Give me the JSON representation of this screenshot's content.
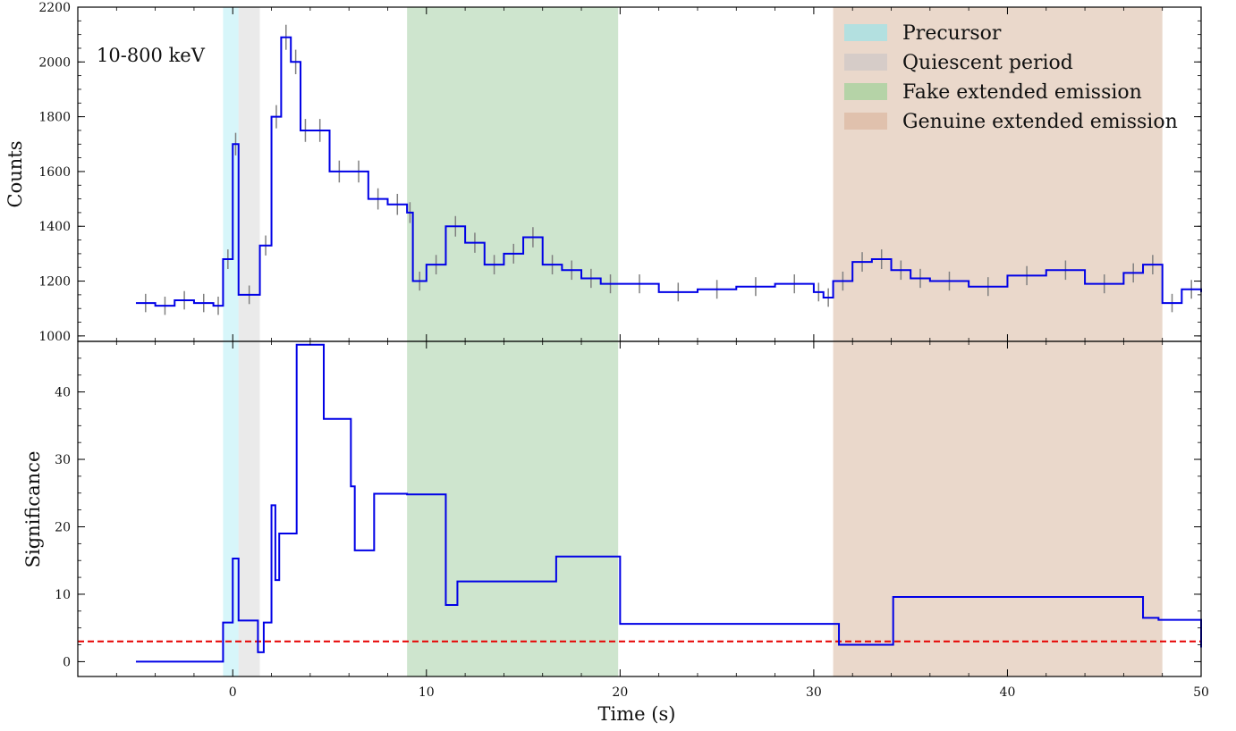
{
  "chart_data": [
    {
      "type": "line",
      "panel": "top",
      "annotation": "10-800 keV",
      "xlabel": "",
      "ylabel": "Counts",
      "xlim": [
        -8,
        50
      ],
      "ylim": [
        980,
        2200
      ],
      "yticks": [
        1000,
        1200,
        1400,
        1600,
        1800,
        2000,
        2200
      ],
      "step": true,
      "error_bars": true,
      "error_color": "#808080",
      "line_color": "#0000e6",
      "shaded_regions": [
        {
          "name": "Precursor",
          "x0": -0.5,
          "x1": 0.3,
          "color": "#b6eef5"
        },
        {
          "name": "Quiescent period",
          "x0": 0.3,
          "x1": 1.4,
          "color": "#d9d9d9"
        },
        {
          "name": "Fake extended emission",
          "x0": 9.0,
          "x1": 19.9,
          "color": "#a5d0a6"
        },
        {
          "name": "Genuine extended emission",
          "x0": 31.0,
          "x1": 48.0,
          "color": "#d9b8a0"
        }
      ],
      "legend": {
        "placement": "top-right",
        "entries": [
          {
            "label": "Precursor",
            "color": "#b3e0e0"
          },
          {
            "label": "Quiescent period",
            "color": "#d6ccc8"
          },
          {
            "label": "Fake extended emission",
            "color": "#b5d3a7"
          },
          {
            "label": "Genuine extended emission",
            "color": "#e0c1ad"
          }
        ]
      },
      "series": [
        {
          "x": [
            -5,
            -4,
            -3,
            -2,
            -1,
            -0.5,
            0,
            0.3,
            1.4,
            2,
            2.5,
            3,
            3.5,
            4,
            5,
            6,
            7,
            8,
            9,
            9.3,
            10,
            11,
            12,
            13,
            14,
            15,
            16,
            17,
            18,
            19,
            20,
            22,
            24,
            26,
            28,
            30,
            30.5,
            31,
            32,
            33,
            34,
            35,
            36,
            38,
            40,
            42,
            44,
            46,
            47,
            48,
            49,
            50
          ],
          "y": [
            1120,
            1110,
            1130,
            1120,
            1110,
            1280,
            1700,
            1150,
            1330,
            1800,
            2090,
            2000,
            1750,
            1750,
            1600,
            1600,
            1500,
            1480,
            1450,
            1200,
            1260,
            1400,
            1340,
            1260,
            1300,
            1360,
            1260,
            1240,
            1210,
            1190,
            1190,
            1160,
            1170,
            1180,
            1190,
            1160,
            1140,
            1200,
            1270,
            1280,
            1240,
            1210,
            1200,
            1180,
            1220,
            1240,
            1190,
            1230,
            1260,
            1120,
            1170,
            1160
          ]
        }
      ]
    },
    {
      "type": "line",
      "panel": "bottom",
      "xlabel": "Time (s)",
      "ylabel": "Significance",
      "xlim": [
        -8,
        50
      ],
      "ylim": [
        -2.2,
        47.5
      ],
      "xticks": [
        0,
        10,
        20,
        30,
        40,
        50
      ],
      "yticks": [
        0,
        10,
        20,
        30,
        40
      ],
      "step": true,
      "line_color": "#0000e6",
      "series": [
        {
          "x": [
            -5,
            -0.5,
            0,
            0.3,
            1.3,
            1.6,
            2.0,
            2.2,
            2.4,
            3.3,
            4.7,
            6.1,
            6.3,
            7.3,
            9.0,
            11.0,
            11.6,
            16.7,
            20.0,
            31.3,
            34.1,
            47.0,
            47.8,
            50
          ],
          "y": [
            0,
            5.8,
            15.3,
            6.1,
            1.4,
            5.8,
            23.2,
            12.1,
            19.0,
            47.0,
            36.0,
            26.0,
            16.5,
            24.9,
            24.8,
            8.4,
            11.9,
            15.6,
            5.6,
            2.5,
            9.6,
            6.5,
            6.2,
            2.1
          ]
        }
      ],
      "threshold": {
        "y": 3,
        "color": "#e60000",
        "style": "dashed"
      }
    }
  ]
}
